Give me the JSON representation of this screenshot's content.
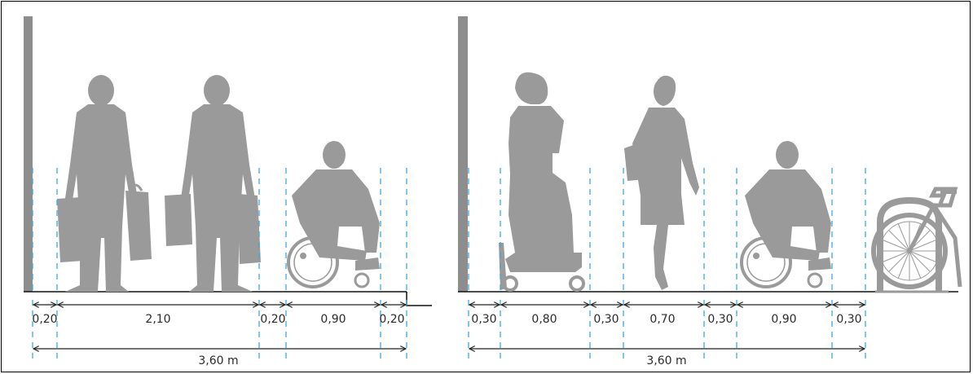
{
  "colors": {
    "silhouette": "#9a9a9b",
    "wall": "#8d8d8e",
    "ground": "#111111",
    "guide": "#3fa9e0",
    "dimension": "#222222",
    "frame": "#000000"
  },
  "panels": [
    {
      "id": "left",
      "figures": [
        {
          "type": "man-with-bags",
          "icon": "man-with-shopping-bags-icon"
        },
        {
          "type": "man-with-bags",
          "icon": "man-with-shopping-bags-icon"
        },
        {
          "type": "wheelchair-user",
          "icon": "wheelchair-user-icon"
        }
      ],
      "segments": [
        "0,20",
        "2,10",
        "0,20",
        "0,90",
        "0,20"
      ],
      "total": "3,60 m"
    },
    {
      "id": "right",
      "figures": [
        {
          "type": "woman-with-stroller",
          "icon": "woman-with-stroller-icon"
        },
        {
          "type": "walking-woman",
          "icon": "walking-woman-icon"
        },
        {
          "type": "wheelchair-user",
          "icon": "wheelchair-user-icon"
        },
        {
          "type": "bicycle-rack",
          "icon": "bicycle-at-rack-icon"
        }
      ],
      "segments": [
        "0,30",
        "0,80",
        "0,30",
        "0,70",
        "0,30",
        "0,90",
        "0,30"
      ],
      "total": "3,60 m"
    }
  ]
}
